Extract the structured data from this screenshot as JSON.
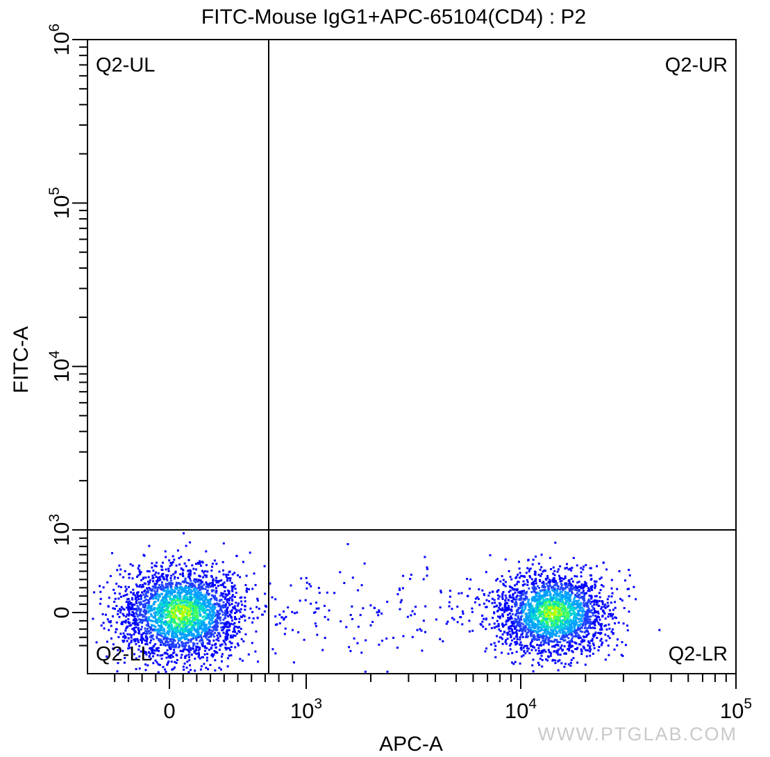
{
  "chart_data": {
    "type": "scatter",
    "title": "FITC-Mouse IgG1+APC-65104(CD4) : P2",
    "xlabel": "APC-A",
    "ylabel": "FITC-A",
    "x_scale": "biexponential",
    "y_scale": "biexponential",
    "xlim": [
      -500,
      100000
    ],
    "ylim": [
      -1000,
      1000000
    ],
    "x_ticks": [
      {
        "value": 0,
        "base": "0",
        "exp": ""
      },
      {
        "value": 1000,
        "base": "10",
        "exp": "3"
      },
      {
        "value": 10000,
        "base": "10",
        "exp": "4"
      },
      {
        "value": 100000,
        "base": "10",
        "exp": "5"
      }
    ],
    "y_ticks": [
      {
        "value": 0,
        "base": "0",
        "exp": ""
      },
      {
        "value": 1000,
        "base": "10",
        "exp": "3"
      },
      {
        "value": 10000,
        "base": "10",
        "exp": "4"
      },
      {
        "value": 100000,
        "base": "10",
        "exp": "5"
      },
      {
        "value": 1000000,
        "base": "10",
        "exp": "6"
      }
    ],
    "quadrant_gate": {
      "x": 700,
      "y": 1000
    },
    "quadrant_labels": {
      "UL": "Q2-UL",
      "UR": "Q2-UR",
      "LL": "Q2-LL",
      "LR": "Q2-LR"
    },
    "populations": [
      {
        "x_center": 80,
        "x_spread": 160,
        "y_center": 5,
        "y_spread": 300,
        "density": "high"
      },
      {
        "x_center": 14000,
        "y_center": 5,
        "y_spread": 280,
        "density": "high"
      },
      {
        "x_range": [
          700,
          8000
        ],
        "y_center": 0,
        "y_spread": 350,
        "density": "sparse"
      }
    ],
    "density_colors": [
      "#0000ff",
      "#1f3fff",
      "#00a0ff",
      "#00d8d0",
      "#40ff60",
      "#c0ff00"
    ],
    "grid": false,
    "legend": "none"
  },
  "watermark": "WWW.PTGLAB.COM"
}
